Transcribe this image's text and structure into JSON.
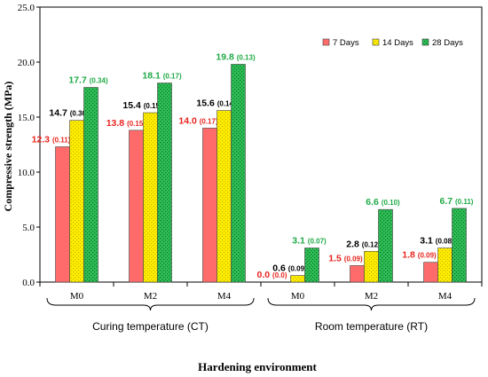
{
  "chart_data": {
    "type": "bar",
    "title": "",
    "ylabel": "Compressive strength (MPa)",
    "xlabel": "Hardening environment",
    "ylim": [
      0,
      25
    ],
    "yticks": [
      "0.0",
      "5.0",
      "10.0",
      "15.0",
      "20.0",
      "25.0"
    ],
    "ytick_values": [
      0,
      5,
      10,
      15,
      20,
      25
    ],
    "grid": false,
    "legend_position": "top-right",
    "categories": [
      "M0",
      "M2",
      "M4",
      "M0",
      "M2",
      "M4"
    ],
    "groups": [
      {
        "label": "Curing temperature (CT)",
        "categories": [
          "M0",
          "M2",
          "M4"
        ]
      },
      {
        "label": "Room temperature (RT)",
        "categories": [
          "M0",
          "M2",
          "M4"
        ]
      }
    ],
    "series": [
      {
        "name": "7 Days",
        "color": "#ff6b6b",
        "label_color": "#e8251f",
        "values": [
          12.3,
          13.8,
          14.0,
          0.0,
          1.5,
          1.8
        ],
        "labels": [
          "12.3",
          "13.8",
          "14.0",
          "0.0",
          "1.5",
          "1.8"
        ],
        "sd": [
          "(0.11)",
          "(0.15",
          "(0.17)",
          "(0.0)",
          "(0.09)",
          "(0.09)"
        ]
      },
      {
        "name": "14 Days",
        "color": "#ffee00",
        "label_color": "#000000",
        "values": [
          14.7,
          15.4,
          15.6,
          0.6,
          2.8,
          3.1
        ],
        "labels": [
          "14.7",
          "15.4",
          "15.6",
          "0.6",
          "2.8",
          "3.1"
        ],
        "sd": [
          "(0.30)",
          "(0.15)",
          "(0.14)",
          "(0.09)",
          "(0.12)",
          "(0.08)"
        ]
      },
      {
        "name": "28 Days",
        "color": "#22b24c",
        "label_color": "#1faa46",
        "values": [
          17.7,
          18.1,
          19.8,
          3.1,
          6.6,
          6.7
        ],
        "labels": [
          "17.7",
          "18.1",
          "19.8",
          "3.1",
          "6.6",
          "6.7"
        ],
        "sd": [
          "(0.34)",
          "(0.17)",
          "(0.13)",
          "(0.07)",
          "(0.10)",
          "(0.11)"
        ]
      }
    ]
  }
}
